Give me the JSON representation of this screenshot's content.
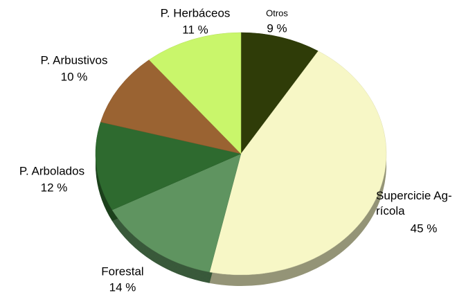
{
  "chart_data": {
    "type": "pie",
    "categories": [
      "Otros",
      "Supercicie Ag-\nrícola",
      "Forestal",
      "P. Arbolados",
      "P. Arbustivos",
      "P. Herbáceos"
    ],
    "values": [
      9,
      45,
      14,
      12,
      10,
      11
    ],
    "value_labels": [
      "9 %",
      "45 %",
      "14 %",
      "12 %",
      "10 %",
      "11 %"
    ],
    "colors": [
      "#2f3c08",
      "#f7f7c6",
      "#5f9460",
      "#2e6a2f",
      "#9a6332",
      "#c9f66b"
    ]
  }
}
